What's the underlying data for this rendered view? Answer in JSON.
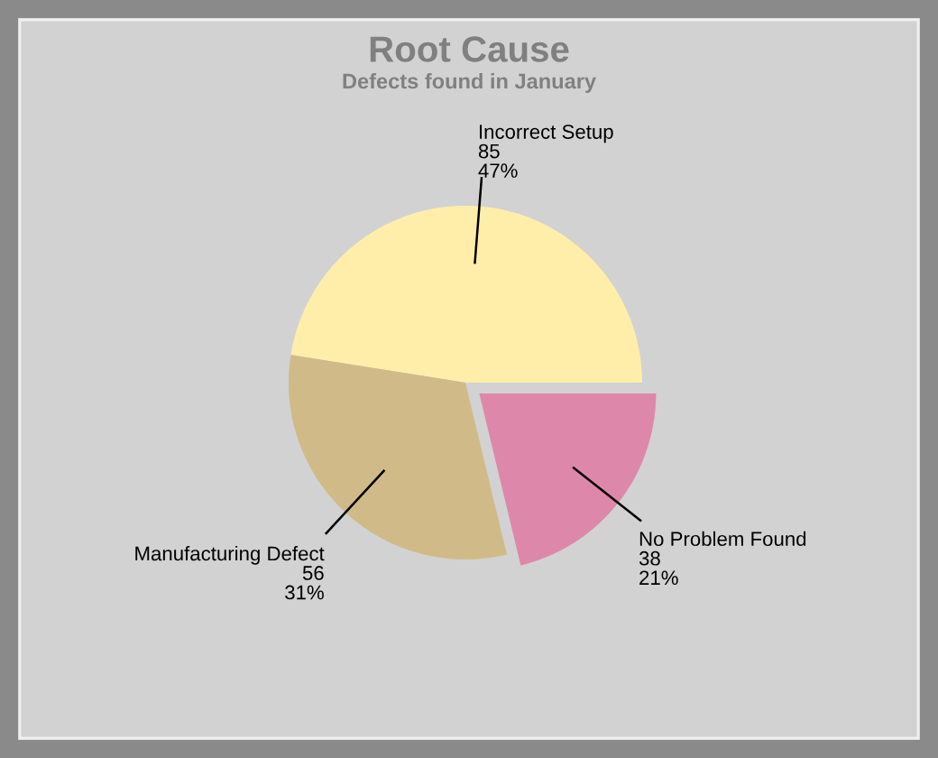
{
  "chart_data": {
    "type": "pie",
    "title": "Root Cause",
    "subtitle": "Defects found in January",
    "categories": [
      "Incorrect Setup",
      "Manufacturing Defect",
      "No Problem Found"
    ],
    "values": [
      85,
      56,
      38
    ],
    "colors": [
      "#ffeeaa",
      "#d0bb88",
      "#dd88aa"
    ],
    "value_labels": [
      "85\n47%",
      "56\n31%",
      "38\n21%"
    ]
  }
}
